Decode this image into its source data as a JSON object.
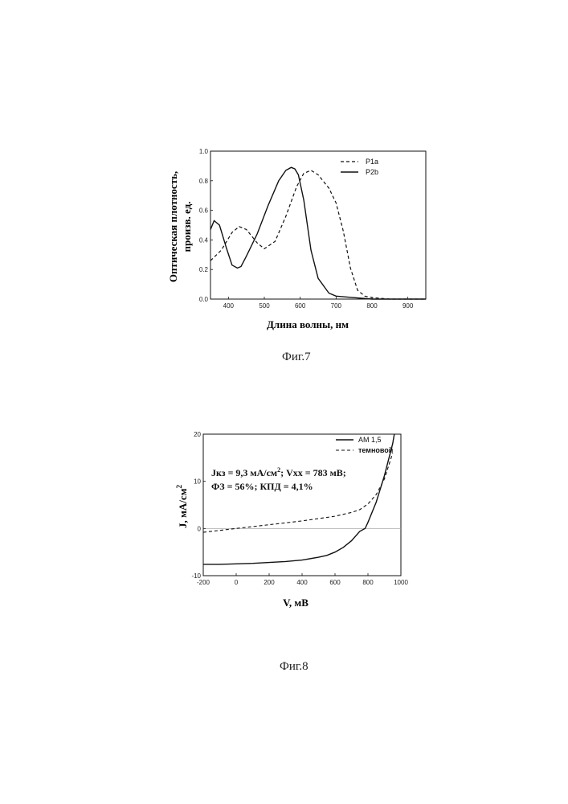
{
  "chart_data": [
    {
      "type": "line",
      "xlabel": "Длина волны, нм",
      "ylabel_line1": "Оптическая плотность,",
      "ylabel_line2": "произв. ед.",
      "xlim": [
        350,
        950
      ],
      "ylim": [
        0.0,
        1.0
      ],
      "xticks": [
        400,
        500,
        600,
        700,
        800,
        900
      ],
      "xtick_labels": [
        "400",
        "500",
        "600",
        "700",
        "800",
        "900"
      ],
      "yticks": [
        0.0,
        0.2,
        0.4,
        0.6,
        0.8,
        1.0
      ],
      "ytick_labels": [
        "0.0",
        "0.2",
        "0.4",
        "0.6",
        "0.8",
        "1.0"
      ],
      "legend_position": "top-right",
      "series": [
        {
          "name": "P1a",
          "style": "dashed",
          "x": [
            350,
            380,
            410,
            430,
            450,
            480,
            500,
            530,
            560,
            590,
            610,
            630,
            650,
            680,
            700,
            720,
            740,
            760,
            780,
            800,
            850,
            900,
            950
          ],
          "y": [
            0.26,
            0.33,
            0.45,
            0.49,
            0.47,
            0.38,
            0.34,
            0.39,
            0.56,
            0.76,
            0.85,
            0.87,
            0.84,
            0.75,
            0.65,
            0.46,
            0.21,
            0.06,
            0.02,
            0.01,
            0.0,
            0.0,
            0.0
          ]
        },
        {
          "name": "P2b",
          "style": "solid",
          "x": [
            350,
            360,
            375,
            395,
            410,
            425,
            435,
            450,
            480,
            510,
            540,
            560,
            575,
            585,
            595,
            610,
            630,
            650,
            680,
            700,
            750,
            800,
            950
          ],
          "y": [
            0.47,
            0.53,
            0.5,
            0.34,
            0.23,
            0.21,
            0.22,
            0.29,
            0.44,
            0.63,
            0.8,
            0.87,
            0.89,
            0.88,
            0.84,
            0.67,
            0.33,
            0.14,
            0.04,
            0.02,
            0.01,
            0.0,
            0.0
          ]
        }
      ],
      "caption": "Фиг.7"
    },
    {
      "type": "line",
      "xlabel": "V, мВ",
      "ylabel": "J, мА/см",
      "ylabel_sup": "2",
      "xlim": [
        -200,
        1000
      ],
      "ylim": [
        -10,
        20
      ],
      "xticks": [
        -200,
        0,
        200,
        400,
        600,
        800,
        1000
      ],
      "xtick_labels": [
        "-200",
        "0",
        "200",
        "400",
        "600",
        "800",
        "1000"
      ],
      "yticks": [
        -10,
        0,
        10,
        20
      ],
      "ytick_labels": [
        "-10",
        "0",
        "10",
        "20"
      ],
      "legend_position": "top-right",
      "annotation_line1": "Jкз = 9,3 мА/см",
      "annotation_sup": "2",
      "annotation_line1_end": "; Vxx = 783 мВ;",
      "annotation_line2": "ФЗ = 56%; КПД = 4,1%",
      "series": [
        {
          "name": "AM 1,5",
          "style": "solid",
          "x": [
            -200,
            -100,
            0,
            100,
            200,
            300,
            400,
            500,
            550,
            600,
            650,
            700,
            750,
            783,
            800,
            850,
            900,
            950,
            960
          ],
          "y": [
            -7.6,
            -7.6,
            -7.5,
            -7.4,
            -7.2,
            -7.0,
            -6.7,
            -6.1,
            -5.7,
            -5.0,
            -4.0,
            -2.6,
            -0.6,
            0.0,
            1.3,
            5.6,
            11.2,
            18.0,
            21.5
          ]
        },
        {
          "name": "темновой",
          "style": "dashed",
          "x": [
            -200,
            -100,
            0,
            100,
            200,
            300,
            400,
            500,
            600,
            650,
            700,
            750,
            800,
            850,
            900,
            950
          ],
          "y": [
            -0.8,
            -0.4,
            0.0,
            0.4,
            0.8,
            1.2,
            1.6,
            2.1,
            2.6,
            3.0,
            3.4,
            4.0,
            5.2,
            7.2,
            10.5,
            16.0
          ]
        }
      ],
      "caption": "Фиг.8"
    }
  ]
}
